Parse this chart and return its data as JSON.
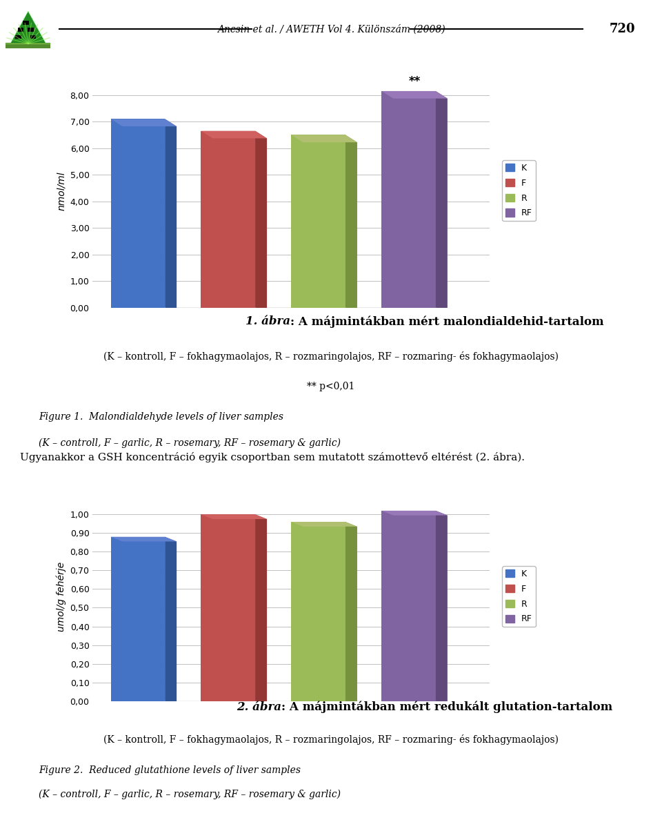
{
  "chart1": {
    "values": [
      7.1,
      6.65,
      6.5,
      8.15
    ],
    "colors": [
      "#4472C4",
      "#C0504D",
      "#9BBB59",
      "#8064A2"
    ],
    "colors_dark": [
      "#2F5496",
      "#943634",
      "#76923C",
      "#60497A"
    ],
    "colors_top": [
      "#6080D0",
      "#D06060",
      "#B0C070",
      "#9878B8"
    ],
    "ylabel": "nmol/ml",
    "yticks": [
      0.0,
      1.0,
      2.0,
      3.0,
      4.0,
      5.0,
      6.0,
      7.0,
      8.0
    ],
    "ylim": [
      0.0,
      8.8
    ],
    "legend_labels": [
      "K",
      "F",
      "R",
      "RF"
    ],
    "annotation": "**",
    "annotation_bar_index": 3
  },
  "chart2": {
    "values": [
      0.88,
      1.0,
      0.96,
      1.02
    ],
    "colors": [
      "#4472C4",
      "#C0504D",
      "#9BBB59",
      "#8064A2"
    ],
    "colors_dark": [
      "#2F5496",
      "#943634",
      "#76923C",
      "#60497A"
    ],
    "colors_top": [
      "#6080D0",
      "#D06060",
      "#B0C070",
      "#9878B8"
    ],
    "ylabel": "umol/g fehérje",
    "yticks": [
      0.0,
      0.1,
      0.2,
      0.3,
      0.4,
      0.5,
      0.6,
      0.7,
      0.8,
      0.9,
      1.0
    ],
    "ylim": [
      0.0,
      1.12
    ],
    "legend_labels": [
      "K",
      "F",
      "R",
      "RF"
    ]
  },
  "header_text": "Ancsin et al. / AWETH Vol 4. Különszám (2008)",
  "page_number": "720",
  "caption1_bold": "1. ábra",
  "caption1_rest": ": A májmintákban mért malondialdehid-tartalom",
  "caption1_line2": "(K – kontroll, F – fokhagymaolajos, R – rozmaringolajos, RF – rozmaring- és fokhagymaolajos)",
  "caption1_line3": "** p<0,01",
  "figure1_line1": "Figure 1.  Malondialdehyde levels of liver samples",
  "figure1_line2": "(K – controll, F – garlic, R – rosemary, RF – rosemary & garlic)",
  "middle_text": "Ugyanakkor a GSH koncentráció egyik csoportban sem mutatott számottevő eltérést (2. ábra).",
  "caption2_bold": "2. ábra",
  "caption2_rest": ": A májmintákban mért redukált glutation-tartalom",
  "caption2_line2": "(K – kontroll, F – fokhagymaolajos, R – rozmaringolajos, RF – rozmaring- és fokhagymaolajos)",
  "figure2_line1": "Figure 2.  Reduced glutathione levels of liver samples",
  "figure2_line2": "(K – controll, F – garlic, R – rosemary, RF – rosemary & garlic)",
  "bg_color": "#FFFFFF",
  "bar_width": 0.6,
  "grid_color": "#C0C0C0",
  "chart_bg": "#FFFFFF"
}
